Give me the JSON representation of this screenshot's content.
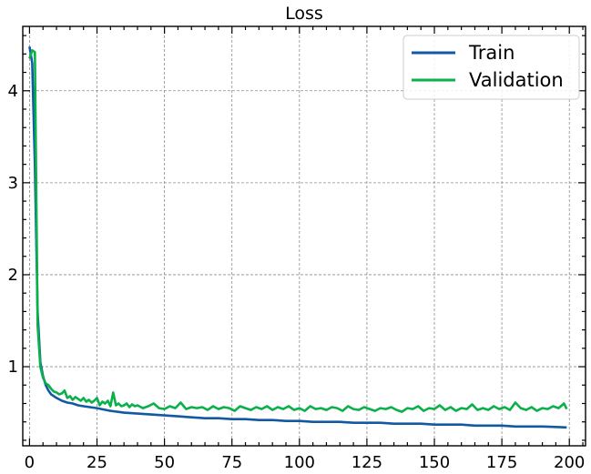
{
  "chart_data": {
    "type": "line",
    "title": "Loss",
    "xlabel": "",
    "ylabel": "",
    "xlim": [
      -2.5,
      206
    ],
    "ylim": [
      0.14,
      4.7
    ],
    "xticks": [
      0,
      25,
      50,
      75,
      100,
      125,
      150,
      175,
      200
    ],
    "yticks": [
      1,
      2,
      3,
      4
    ],
    "grid": true,
    "legend_position": "top-right",
    "series": [
      {
        "name": "Train",
        "color": "#1259a3",
        "x": [
          0,
          1,
          2,
          3,
          4,
          5,
          6,
          7,
          8,
          9,
          10,
          12,
          14,
          16,
          18,
          20,
          25,
          30,
          35,
          40,
          45,
          50,
          55,
          60,
          65,
          70,
          75,
          80,
          85,
          90,
          95,
          100,
          105,
          110,
          115,
          120,
          125,
          130,
          135,
          140,
          145,
          150,
          155,
          160,
          165,
          170,
          175,
          180,
          185,
          190,
          195,
          199
        ],
        "y": [
          4.48,
          4.3,
          3.2,
          1.6,
          1.05,
          0.9,
          0.8,
          0.74,
          0.7,
          0.68,
          0.66,
          0.63,
          0.61,
          0.6,
          0.58,
          0.57,
          0.55,
          0.52,
          0.5,
          0.49,
          0.48,
          0.47,
          0.46,
          0.45,
          0.44,
          0.44,
          0.43,
          0.43,
          0.42,
          0.42,
          0.41,
          0.41,
          0.4,
          0.4,
          0.4,
          0.39,
          0.39,
          0.39,
          0.38,
          0.38,
          0.38,
          0.37,
          0.37,
          0.37,
          0.36,
          0.36,
          0.36,
          0.35,
          0.35,
          0.35,
          0.345,
          0.34
        ]
      },
      {
        "name": "Validation",
        "color": "#0ab04a",
        "x": [
          0,
          1,
          2,
          3,
          4,
          5,
          6,
          7,
          8,
          9,
          10,
          11,
          12,
          13,
          14,
          15,
          16,
          17,
          18,
          19,
          20,
          21,
          22,
          23,
          24,
          25,
          26,
          27,
          28,
          29,
          30,
          31,
          32,
          33,
          34,
          35,
          36,
          37,
          38,
          39,
          40,
          42,
          44,
          46,
          48,
          50,
          52,
          54,
          56,
          58,
          60,
          62,
          64,
          66,
          68,
          70,
          72,
          74,
          76,
          78,
          80,
          82,
          84,
          86,
          88,
          90,
          92,
          94,
          96,
          98,
          100,
          102,
          104,
          106,
          108,
          110,
          112,
          114,
          116,
          118,
          120,
          122,
          124,
          126,
          128,
          130,
          132,
          134,
          136,
          138,
          140,
          142,
          144,
          146,
          148,
          150,
          152,
          154,
          156,
          158,
          160,
          162,
          164,
          166,
          168,
          170,
          172,
          174,
          176,
          178,
          180,
          182,
          184,
          186,
          188,
          190,
          192,
          194,
          196,
          198,
          199
        ],
        "y": [
          4.35,
          4.44,
          4.42,
          1.45,
          1.0,
          0.88,
          0.82,
          0.8,
          0.76,
          0.73,
          0.72,
          0.7,
          0.71,
          0.74,
          0.66,
          0.68,
          0.64,
          0.67,
          0.65,
          0.63,
          0.66,
          0.62,
          0.64,
          0.61,
          0.63,
          0.66,
          0.58,
          0.62,
          0.6,
          0.63,
          0.57,
          0.72,
          0.58,
          0.6,
          0.57,
          0.58,
          0.6,
          0.56,
          0.59,
          0.57,
          0.58,
          0.55,
          0.57,
          0.6,
          0.55,
          0.54,
          0.57,
          0.55,
          0.61,
          0.54,
          0.56,
          0.55,
          0.56,
          0.53,
          0.57,
          0.54,
          0.56,
          0.55,
          0.52,
          0.57,
          0.55,
          0.53,
          0.56,
          0.54,
          0.57,
          0.53,
          0.56,
          0.54,
          0.57,
          0.53,
          0.55,
          0.52,
          0.57,
          0.54,
          0.55,
          0.53,
          0.56,
          0.55,
          0.52,
          0.57,
          0.54,
          0.53,
          0.56,
          0.54,
          0.52,
          0.55,
          0.54,
          0.56,
          0.53,
          0.51,
          0.55,
          0.54,
          0.57,
          0.52,
          0.55,
          0.54,
          0.58,
          0.53,
          0.56,
          0.52,
          0.55,
          0.54,
          0.59,
          0.53,
          0.55,
          0.53,
          0.57,
          0.54,
          0.56,
          0.53,
          0.61,
          0.55,
          0.53,
          0.56,
          0.52,
          0.55,
          0.54,
          0.57,
          0.55,
          0.6,
          0.54
        ]
      }
    ]
  }
}
